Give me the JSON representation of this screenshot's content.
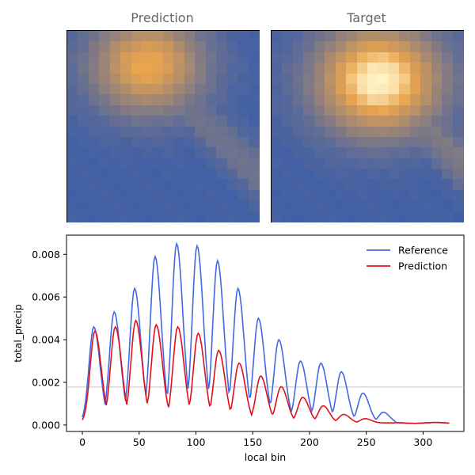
{
  "chart_data": [
    {
      "type": "heatmap",
      "title": "Prediction",
      "grid": [
        18,
        18
      ],
      "colormap": [
        "#3f5fa6",
        "#e9a44e"
      ],
      "peak": [
        0.42,
        0.18
      ],
      "intensity": 0.75,
      "spread": 0.38
    },
    {
      "type": "heatmap",
      "title": "Target",
      "grid": [
        18,
        18
      ],
      "colormap": [
        "#3f5fa6",
        "#fff4c6"
      ],
      "peak": [
        0.56,
        0.26
      ],
      "intensity": 1.0,
      "spread": 0.42
    },
    {
      "type": "line",
      "title": "",
      "xlabel": "local bin",
      "ylabel": "total_precip",
      "xlim": [
        -14,
        336
      ],
      "ylim": [
        -0.0003,
        0.0089
      ],
      "x_ticks": [
        0,
        50,
        100,
        150,
        200,
        250,
        300
      ],
      "y_ticks": [
        0.0,
        0.002,
        0.004,
        0.006,
        0.008
      ],
      "y_tick_labels": [
        "0.000",
        "0.002",
        "0.004",
        "0.006",
        "0.008"
      ],
      "hline": 0.00178,
      "legend_position": "top-right",
      "series": [
        {
          "name": "Reference",
          "color": "#4169e1",
          "peaks": [
            {
              "x": 10,
              "y": 0.0046
            },
            {
              "x": 28,
              "y": 0.0053
            },
            {
              "x": 46,
              "y": 0.0064
            },
            {
              "x": 64,
              "y": 0.0079
            },
            {
              "x": 83,
              "y": 0.0085
            },
            {
              "x": 101,
              "y": 0.0084
            },
            {
              "x": 119,
              "y": 0.0077
            },
            {
              "x": 137,
              "y": 0.0064
            },
            {
              "x": 155,
              "y": 0.005
            },
            {
              "x": 173,
              "y": 0.004
            },
            {
              "x": 192,
              "y": 0.003
            },
            {
              "x": 210,
              "y": 0.0029
            },
            {
              "x": 228,
              "y": 0.0025
            },
            {
              "x": 247,
              "y": 0.0015
            },
            {
              "x": 265,
              "y": 0.0006
            }
          ],
          "baseline": 0.0001,
          "x_end": 323
        },
        {
          "name": "Prediction",
          "color": "#e0101a",
          "peaks": [
            {
              "x": 11,
              "y": 0.0044
            },
            {
              "x": 29,
              "y": 0.0046
            },
            {
              "x": 47,
              "y": 0.0049
            },
            {
              "x": 65,
              "y": 0.0047
            },
            {
              "x": 84,
              "y": 0.0046
            },
            {
              "x": 102,
              "y": 0.0043
            },
            {
              "x": 120,
              "y": 0.0035
            },
            {
              "x": 138,
              "y": 0.0029
            },
            {
              "x": 157,
              "y": 0.0023
            },
            {
              "x": 175,
              "y": 0.0018
            },
            {
              "x": 194,
              "y": 0.0013
            },
            {
              "x": 212,
              "y": 0.0009
            },
            {
              "x": 230,
              "y": 0.0005
            },
            {
              "x": 249,
              "y": 0.0003
            },
            {
              "x": 267,
              "y": 0.0001
            }
          ],
          "baseline": 0.0001,
          "x_end": 323
        }
      ]
    }
  ]
}
